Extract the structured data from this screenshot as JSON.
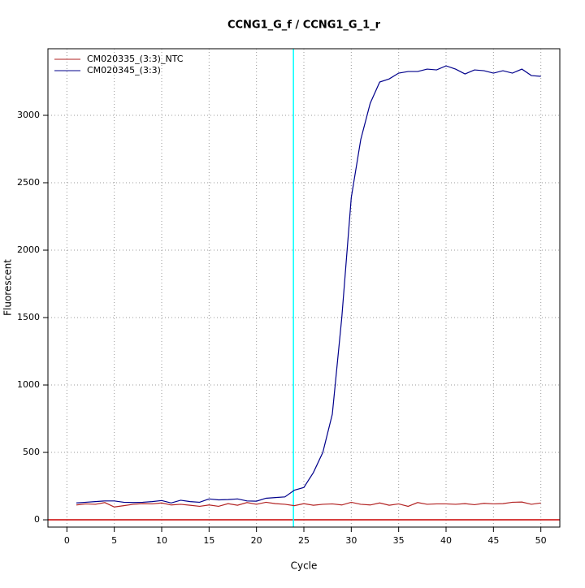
{
  "chart_data": {
    "type": "line",
    "title": "CCNG1_G_f / CCNG1_G_1_r",
    "x_label": "Cycle",
    "y_label": "Fluorescent",
    "x": [
      1,
      2,
      3,
      4,
      5,
      6,
      7,
      8,
      9,
      10,
      11,
      12,
      13,
      14,
      15,
      16,
      17,
      18,
      19,
      20,
      21,
      22,
      23,
      24,
      25,
      26,
      27,
      28,
      29,
      30,
      31,
      32,
      33,
      34,
      35,
      36,
      37,
      38,
      39,
      40,
      41,
      42,
      43,
      44,
      45,
      46,
      47,
      48,
      49,
      50
    ],
    "series": [
      {
        "name": "CM020335_(3:3)_NTC",
        "color": "#b22222",
        "values": [
          110,
          118,
          115,
          128,
          95,
          105,
          115,
          120,
          118,
          125,
          110,
          115,
          108,
          100,
          110,
          100,
          120,
          108,
          128,
          115,
          130,
          120,
          115,
          105,
          120,
          108,
          115,
          118,
          110,
          130,
          115,
          110,
          125,
          108,
          118,
          100,
          128,
          115,
          118,
          118,
          115,
          120,
          112,
          122,
          118,
          120,
          130,
          132,
          115,
          125
        ]
      },
      {
        "name": "CM020345_(3:3)",
        "color": "#00008b",
        "values": [
          125,
          130,
          135,
          140,
          140,
          130,
          128,
          130,
          135,
          143,
          125,
          145,
          135,
          130,
          155,
          148,
          150,
          155,
          140,
          138,
          160,
          165,
          170,
          220,
          240,
          350,
          500,
          783,
          1500,
          2390,
          2820,
          3090,
          3247,
          3270,
          3313,
          3325,
          3325,
          3343,
          3337,
          3367,
          3343,
          3307,
          3337,
          3331,
          3313,
          3331,
          3313,
          3343,
          3295,
          3289
        ]
      }
    ],
    "vlines": [
      {
        "x": 23.9,
        "color": "#00ffff"
      }
    ],
    "hlines": [
      {
        "y": 0,
        "color": "#cc0000"
      }
    ],
    "xlim": [
      -2,
      52
    ],
    "ylim": [
      -54,
      3494
    ],
    "xticks": [
      0,
      5,
      10,
      15,
      20,
      25,
      30,
      35,
      40,
      45,
      50
    ],
    "yticks": [
      0,
      500,
      1000,
      1500,
      2000,
      2500,
      3000
    ],
    "grid": true,
    "legend": "top-left"
  }
}
